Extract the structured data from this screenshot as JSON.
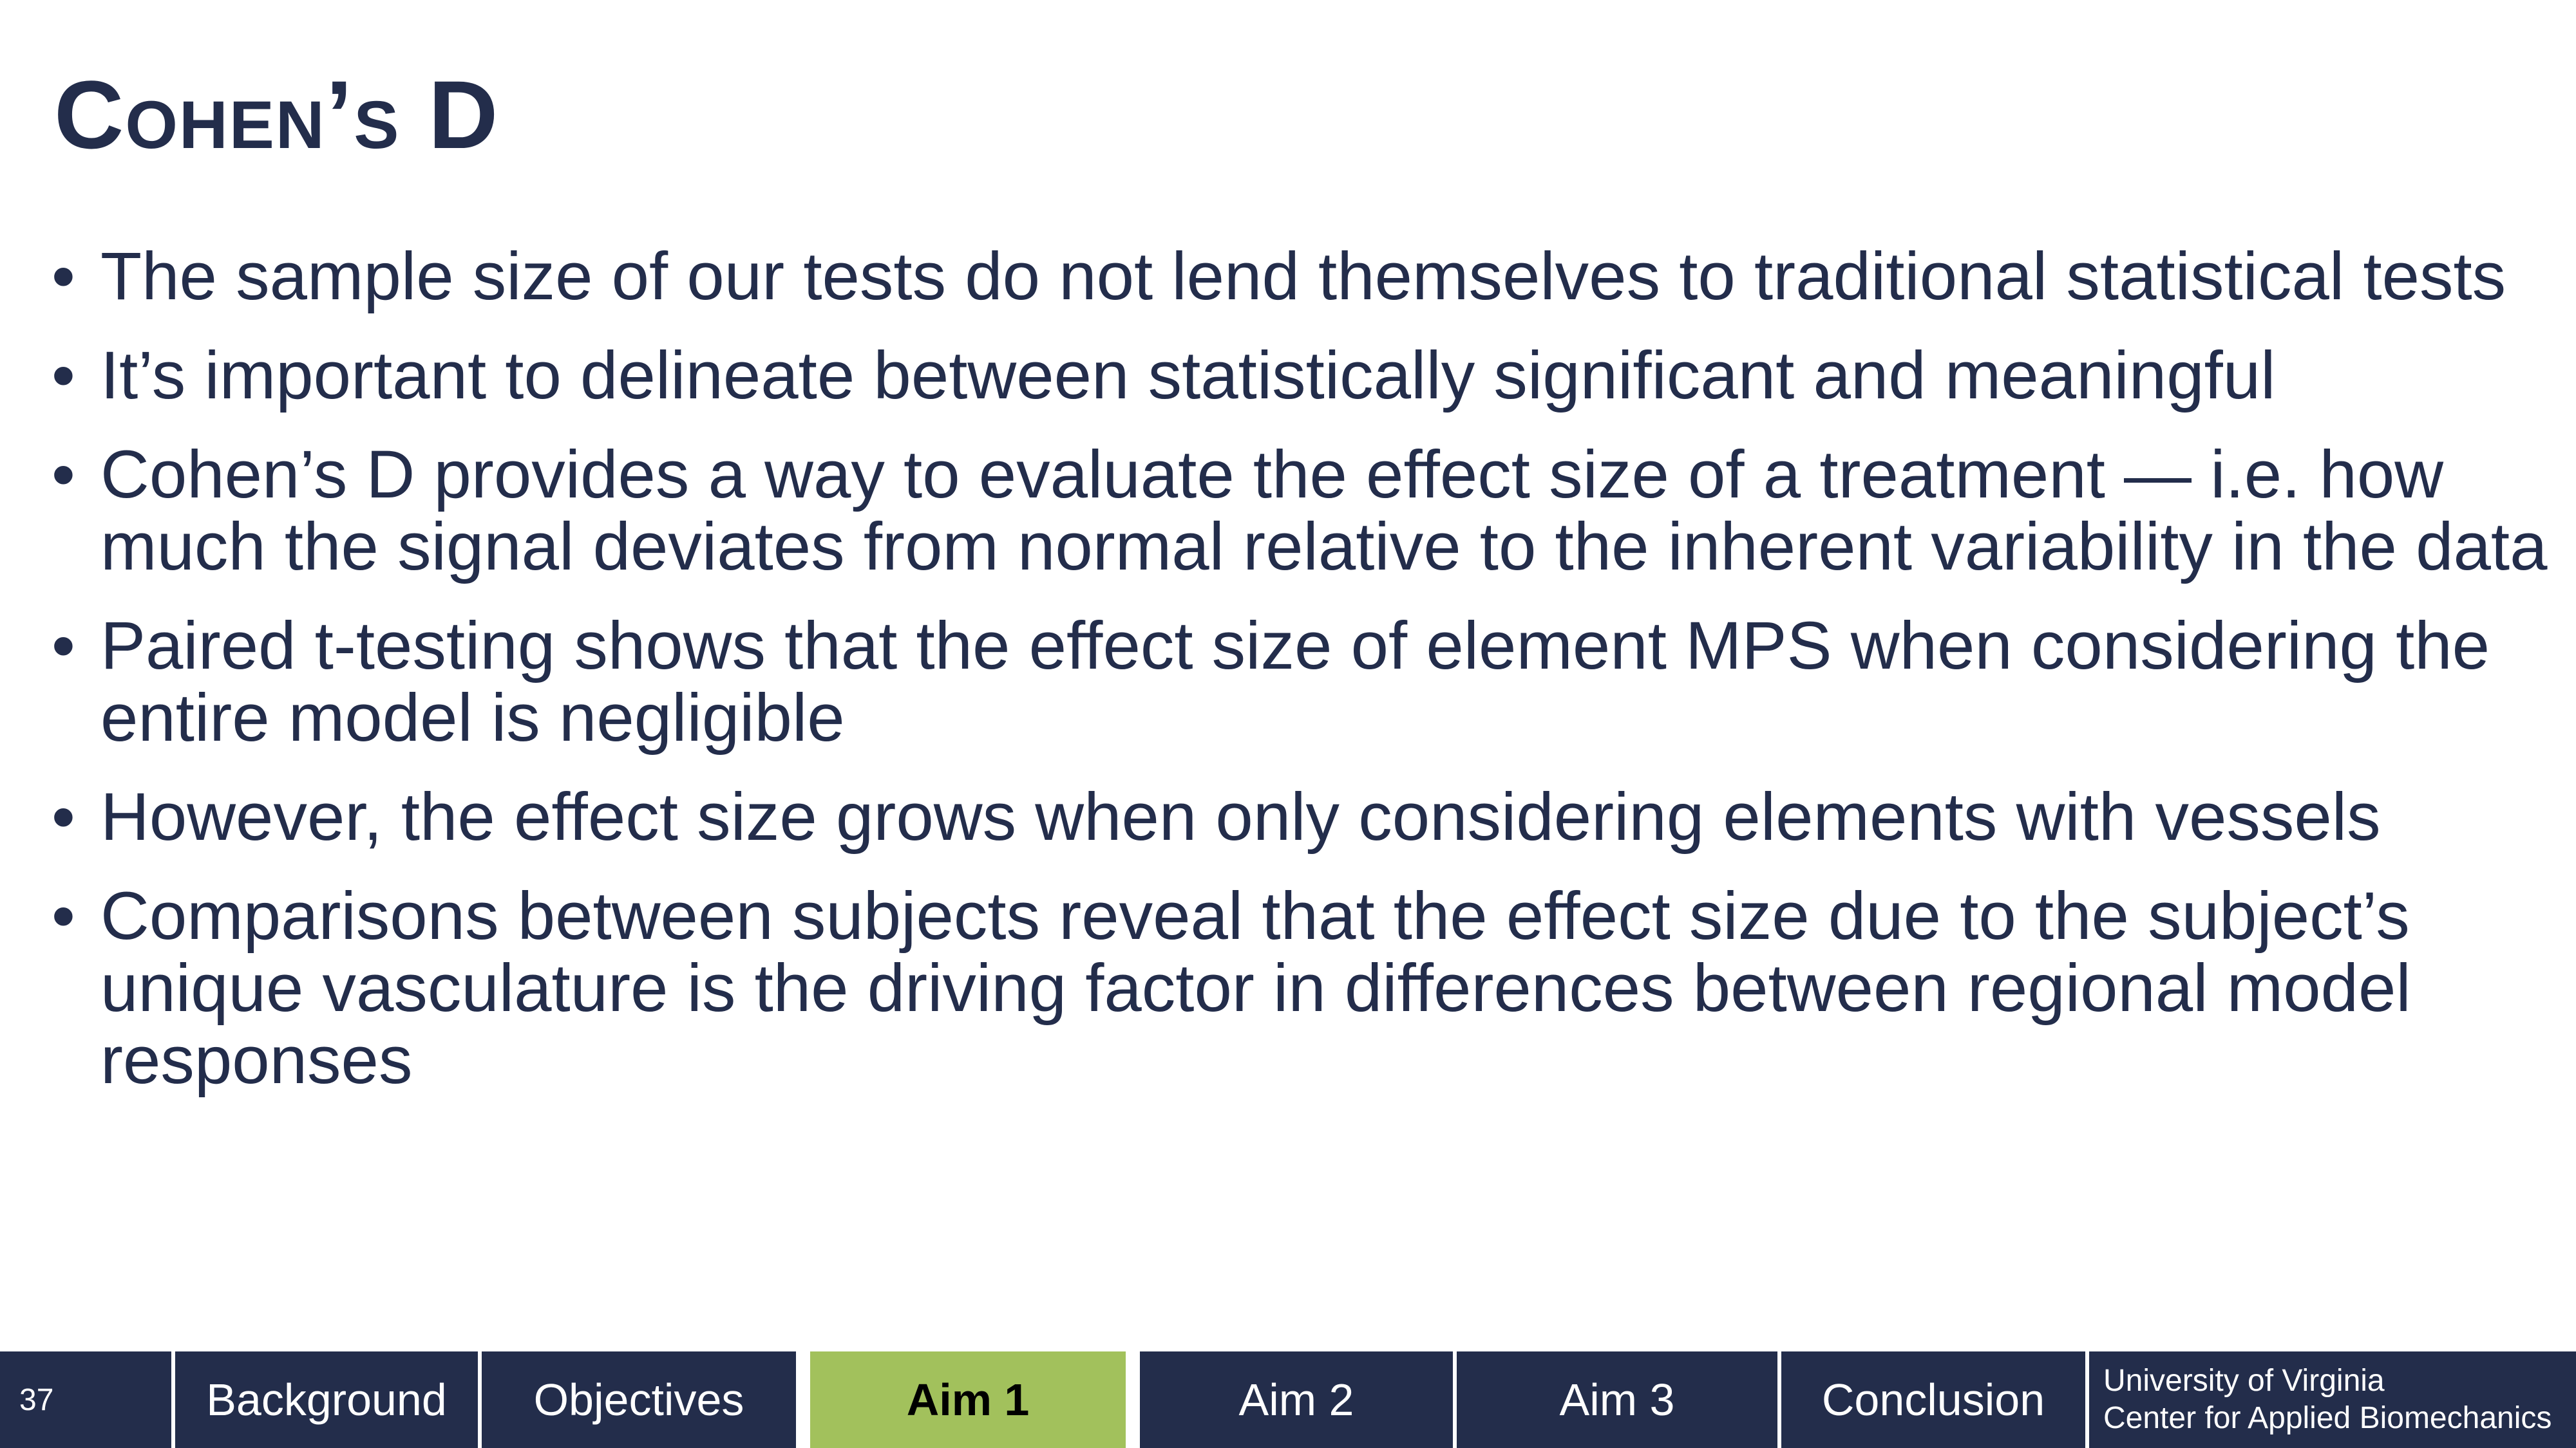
{
  "slide": {
    "title": "Cohen’s D",
    "bullets": [
      "The sample size of our tests do not lend themselves to traditional statistical tests",
      "It’s important to delineate between statistically significant and meaningful",
      "Cohen’s D provides a way to evaluate the effect size of a treatment — i.e. how much the signal deviates from normal relative to the inherent variability in the data",
      "Paired t-testing shows that the effect size of element MPS when considering the entire model is negligible",
      "However, the effect size grows when only considering elements with vessels",
      "Comparisons between subjects reveal that the effect size due to the subject’s unique vasculature is the driving factor in differences between regional model responses"
    ],
    "bullet_glyph": "•"
  },
  "footer": {
    "page_number": "37",
    "tabs": [
      {
        "label": "Background",
        "active": false
      },
      {
        "label": "Objectives",
        "active": false
      },
      {
        "label": "Aim 1",
        "active": true
      },
      {
        "label": "Aim 2",
        "active": false
      },
      {
        "label": "Aim 3",
        "active": false
      },
      {
        "label": "Conclusion",
        "active": false
      }
    ],
    "org_line1": "University of Virginia",
    "org_line2": "Center for Applied Biomechanics"
  },
  "colors": {
    "navy": "#232d4b",
    "active_tab": "#a2c15c",
    "white": "#ffffff"
  }
}
